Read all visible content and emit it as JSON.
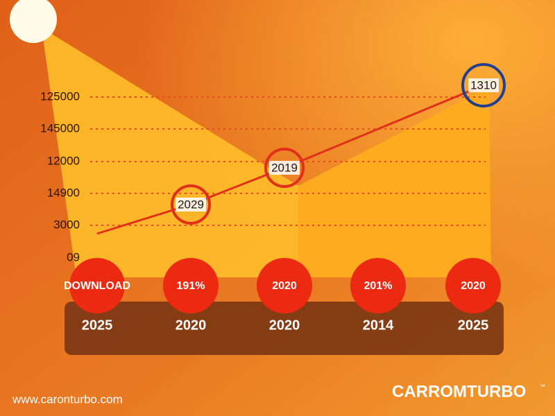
{
  "y_labels": [
    "125000",
    "145000",
    "12000",
    "14900",
    "3000",
    "09"
  ],
  "point_labels": [
    "2029",
    "2019",
    "1310"
  ],
  "buttons": [
    "DOWNLOAD",
    "191%",
    "2020",
    "201%",
    "2020"
  ],
  "years": [
    "2025",
    "2020",
    "2020",
    "2014",
    "2025"
  ],
  "footer": {
    "url": "www.caronturbo.com",
    "brand": "CARROMTURBO",
    "trademark": "™"
  }
}
